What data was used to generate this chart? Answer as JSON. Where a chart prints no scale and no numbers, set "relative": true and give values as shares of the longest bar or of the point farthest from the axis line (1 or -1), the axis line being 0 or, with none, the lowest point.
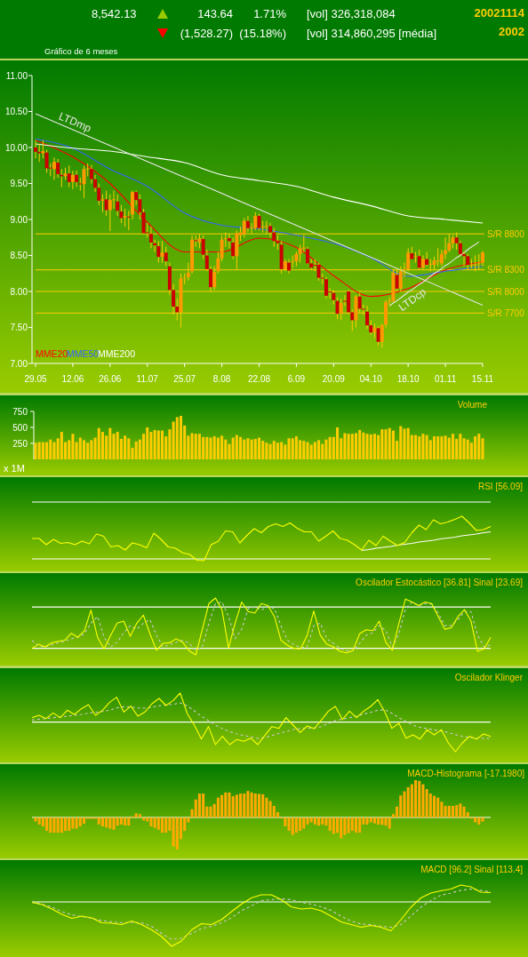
{
  "chart_data": [
    {
      "type": "other",
      "annotations": [
        "8,542.13",
        "143.64",
        "1.71%",
        "[vol] 326,318,084",
        "(1,528.27)",
        "(15.18%)",
        "[vol] 314,860,295 [média]",
        "20021114",
        "2002",
        "Gráfico de 6 meses"
      ]
    },
    {
      "type": "candlestick",
      "categories": [
        "29.05",
        null,
        null,
        null,
        null,
        null,
        null,
        null,
        null,
        null,
        "12.06",
        null,
        null,
        null,
        null,
        null,
        null,
        null,
        null,
        null,
        "26.06",
        null,
        null,
        null,
        null,
        null,
        null,
        null,
        null,
        null,
        "11.07",
        null,
        null,
        null,
        null,
        null,
        null,
        null,
        null,
        null,
        "25.07",
        null,
        null,
        null,
        null,
        null,
        null,
        null,
        null,
        null,
        "8.08",
        null,
        null,
        null,
        null,
        null,
        null,
        null,
        null,
        null,
        "22.08",
        null,
        null,
        null,
        null,
        null,
        null,
        null,
        null,
        null,
        "6.09",
        null,
        null,
        null,
        null,
        null,
        null,
        null,
        null,
        null,
        "20.09",
        null,
        null,
        null,
        null,
        null,
        null,
        null,
        null,
        null,
        "04.10",
        null,
        null,
        null,
        null,
        null,
        null,
        null,
        null,
        null,
        "18.10",
        null,
        null,
        null,
        null,
        null,
        null,
        null,
        null,
        null,
        "01.11",
        null,
        null,
        null,
        null,
        null,
        null,
        null,
        null,
        null,
        "15.11"
      ],
      "ohlc": [
        [
          10.0,
          10.1,
          9.85,
          9.94
        ],
        [
          9.94,
          10.05,
          9.8,
          9.92
        ],
        [
          9.92,
          10.1,
          9.85,
          9.95
        ],
        [
          9.93,
          9.97,
          9.65,
          9.71
        ],
        [
          9.72,
          9.78,
          9.6,
          9.71
        ],
        [
          9.7,
          9.86,
          9.55,
          9.8
        ],
        [
          9.79,
          9.84,
          9.58,
          9.63
        ],
        [
          9.62,
          9.7,
          9.45,
          9.6
        ],
        [
          9.6,
          9.72,
          9.55,
          9.64
        ],
        [
          9.64,
          9.75,
          9.45,
          9.52
        ],
        [
          9.52,
          9.68,
          9.42,
          9.62
        ],
        [
          9.62,
          9.68,
          9.45,
          9.52
        ],
        [
          9.5,
          9.58,
          9.4,
          9.49
        ],
        [
          9.49,
          9.75,
          9.3,
          9.7
        ],
        [
          9.7,
          9.78,
          9.6,
          9.71
        ],
        [
          9.7,
          9.76,
          9.5,
          9.56
        ],
        [
          9.56,
          9.62,
          9.38,
          9.44
        ],
        [
          9.44,
          9.5,
          9.2,
          9.26
        ],
        [
          9.26,
          9.35,
          9.1,
          9.28
        ],
        [
          9.28,
          9.4,
          9.05,
          9.13
        ],
        [
          9.13,
          9.35,
          8.84,
          9.27
        ],
        [
          9.27,
          9.4,
          9.15,
          9.28
        ],
        [
          9.25,
          9.35,
          9.05,
          9.12
        ],
        [
          9.11,
          9.2,
          8.95,
          9.02
        ],
        [
          9.03,
          9.15,
          8.9,
          9.05
        ],
        [
          9.04,
          9.12,
          8.85,
          9.03
        ],
        [
          9.07,
          9.4,
          9.0,
          9.38
        ],
        [
          9.38,
          9.4,
          9.2,
          9.27
        ],
        [
          9.28,
          9.35,
          9.0,
          9.1
        ],
        [
          9.1,
          9.15,
          8.8,
          8.81
        ],
        [
          8.82,
          8.95,
          8.75,
          8.81
        ],
        [
          8.8,
          8.9,
          8.6,
          8.68
        ],
        [
          8.67,
          8.72,
          8.55,
          8.64
        ],
        [
          8.63,
          8.7,
          8.4,
          8.48
        ],
        [
          8.48,
          8.7,
          8.4,
          8.54
        ],
        [
          8.54,
          8.62,
          8.35,
          8.42
        ],
        [
          8.35,
          8.4,
          7.95,
          8.02
        ],
        [
          8.02,
          8.1,
          7.68,
          7.79
        ],
        [
          7.79,
          7.9,
          7.6,
          7.71
        ],
        [
          7.71,
          8.25,
          7.5,
          8.18
        ],
        [
          8.18,
          8.25,
          8.1,
          8.19
        ],
        [
          8.2,
          8.4,
          8.15,
          8.26
        ],
        [
          8.28,
          8.78,
          8.25,
          8.72
        ],
        [
          8.71,
          8.78,
          8.62,
          8.7
        ],
        [
          8.68,
          8.8,
          8.6,
          8.74
        ],
        [
          8.73,
          8.78,
          8.45,
          8.51
        ],
        [
          8.5,
          8.58,
          8.28,
          8.31
        ],
        [
          8.31,
          8.35,
          8.0,
          8.06
        ],
        [
          8.06,
          8.35,
          8.02,
          8.27
        ],
        [
          8.28,
          8.55,
          8.25,
          8.46
        ],
        [
          8.46,
          8.78,
          8.42,
          8.72
        ],
        [
          8.73,
          8.82,
          8.62,
          8.74
        ],
        [
          8.74,
          8.8,
          8.6,
          8.7
        ],
        [
          8.68,
          8.75,
          8.45,
          8.49
        ],
        [
          8.49,
          8.85,
          8.3,
          8.81
        ],
        [
          8.78,
          8.9,
          8.7,
          8.82
        ],
        [
          8.8,
          9.02,
          8.75,
          8.98
        ],
        [
          8.98,
          9.05,
          8.82,
          8.88
        ],
        [
          8.88,
          8.95,
          8.8,
          8.89
        ],
        [
          8.88,
          9.1,
          8.85,
          9.05
        ],
        [
          9.05,
          9.08,
          8.85,
          8.88
        ],
        [
          8.89,
          8.98,
          8.82,
          8.9
        ],
        [
          8.91,
          8.98,
          8.8,
          8.91
        ],
        [
          8.91,
          8.95,
          8.75,
          8.82
        ],
        [
          8.82,
          8.88,
          8.62,
          8.7
        ],
        [
          8.7,
          8.78,
          8.58,
          8.67
        ],
        [
          8.65,
          8.7,
          8.25,
          8.31
        ],
        [
          8.31,
          8.45,
          8.28,
          8.42
        ],
        [
          8.4,
          8.45,
          8.25,
          8.29
        ],
        [
          8.42,
          8.5,
          8.33,
          8.42
        ],
        [
          8.42,
          8.55,
          8.35,
          8.52
        ],
        [
          8.52,
          8.65,
          8.4,
          8.6
        ],
        [
          8.6,
          8.78,
          8.55,
          8.61
        ],
        [
          8.59,
          8.62,
          8.38,
          8.39
        ],
        [
          8.39,
          8.45,
          8.3,
          8.33
        ],
        [
          8.37,
          8.45,
          8.28,
          8.36
        ],
        [
          8.37,
          8.4,
          8.15,
          8.19
        ],
        [
          8.19,
          8.25,
          8.1,
          8.18
        ],
        [
          8.17,
          8.2,
          7.9,
          7.94
        ],
        [
          8.0,
          8.05,
          7.9,
          7.99
        ],
        [
          7.98,
          8.02,
          7.82,
          7.88
        ],
        [
          7.87,
          7.92,
          7.62,
          7.69
        ],
        [
          7.69,
          7.9,
          7.6,
          7.84
        ],
        [
          7.87,
          7.95,
          7.8,
          7.86
        ],
        [
          8.0,
          8.02,
          7.68,
          7.71
        ],
        [
          7.71,
          7.75,
          7.45,
          7.6
        ],
        [
          7.6,
          7.95,
          7.5,
          7.93
        ],
        [
          7.93,
          7.98,
          7.7,
          7.76
        ],
        [
          7.76,
          7.82,
          7.68,
          7.75
        ],
        [
          7.72,
          7.8,
          7.48,
          7.53
        ],
        [
          7.53,
          7.6,
          7.4,
          7.43
        ],
        [
          7.43,
          7.55,
          7.35,
          7.5
        ],
        [
          7.49,
          7.52,
          7.25,
          7.3
        ],
        [
          7.3,
          7.55,
          7.22,
          7.53
        ],
        [
          7.54,
          7.88,
          7.5,
          7.85
        ],
        [
          7.85,
          7.92,
          7.8,
          7.87
        ],
        [
          7.87,
          8.3,
          7.85,
          8.26
        ],
        [
          8.23,
          8.3,
          8.0,
          8.04
        ],
        [
          8.04,
          8.35,
          8.0,
          8.28
        ],
        [
          8.3,
          8.4,
          8.2,
          8.31
        ],
        [
          8.31,
          8.6,
          8.28,
          8.54
        ],
        [
          8.53,
          8.62,
          8.45,
          8.45
        ],
        [
          8.49,
          8.55,
          8.4,
          8.49
        ],
        [
          8.49,
          8.58,
          8.3,
          8.33
        ],
        [
          8.33,
          8.5,
          8.3,
          8.45
        ],
        [
          8.45,
          8.55,
          8.35,
          8.37
        ],
        [
          8.37,
          8.45,
          8.28,
          8.38
        ],
        [
          8.37,
          8.48,
          8.3,
          8.43
        ],
        [
          8.43,
          8.6,
          8.35,
          8.43
        ],
        [
          8.39,
          8.58,
          8.35,
          8.52
        ],
        [
          8.52,
          8.75,
          8.45,
          8.57
        ],
        [
          8.57,
          8.8,
          8.55,
          8.67
        ],
        [
          8.67,
          8.78,
          8.6,
          8.75
        ],
        [
          8.75,
          8.82,
          8.58,
          8.67
        ],
        [
          8.67,
          8.7,
          8.5,
          8.52
        ],
        [
          8.52,
          8.55,
          8.35,
          8.49
        ],
        [
          8.49,
          8.52,
          8.3,
          8.37
        ],
        [
          8.37,
          8.45,
          8.32,
          8.37
        ],
        [
          8.37,
          8.5,
          8.28,
          8.38
        ],
        [
          8.4,
          8.52,
          8.3,
          8.4
        ],
        [
          8.4,
          8.56,
          8.35,
          8.54
        ]
      ],
      "ylim": [
        7,
        11
      ],
      "yticks": [
        {
          "value": 7,
          "label": "7.00"
        },
        {
          "value": 7.5,
          "label": "7.50"
        },
        {
          "value": 8,
          "label": "8.00"
        },
        {
          "value": 8.5,
          "label": "8.50"
        },
        {
          "value": 9,
          "label": "9.00"
        },
        {
          "value": 9.5,
          "label": "9.50"
        },
        {
          "value": 10,
          "label": "10.00"
        },
        {
          "value": 10.5,
          "label": "10.50"
        },
        {
          "value": 11,
          "label": "11.00"
        }
      ],
      "series": [
        {
          "type": "line",
          "name": "MME20",
          "color": "#ff0000",
          "x": [
            "29.05",
            "12.06",
            "26.06",
            "11.07",
            "25.07",
            "8.08",
            "22.08",
            "6.09",
            "20.09",
            "04.10",
            "18.10",
            "01.11",
            "15.11"
          ],
          "values": [
            10.1,
            9.87,
            9.5,
            8.96,
            8.55,
            8.55,
            8.74,
            8.61,
            8.22,
            7.93,
            8.04,
            8.3,
            8.41
          ]
        },
        {
          "type": "line",
          "name": "MME50",
          "color": "#3366ff",
          "x": [
            "29.05",
            "12.06",
            "26.06",
            "11.07",
            "25.07",
            "8.08",
            "22.08",
            "6.09",
            "20.09",
            "04.10",
            "18.10",
            "01.11",
            "15.11"
          ],
          "values": [
            10.12,
            9.99,
            9.7,
            9.46,
            9.09,
            8.92,
            8.87,
            8.78,
            8.67,
            8.47,
            8.21,
            8.28,
            8.35
          ]
        },
        {
          "type": "line",
          "name": "MME200",
          "color": "#ffffff",
          "x": [
            "29.05",
            "12.06",
            "26.06",
            "11.07",
            "25.07",
            "8.08",
            "22.08",
            "6.09",
            "20.09",
            "04.10",
            "18.10",
            "01.11",
            "15.11"
          ],
          "values": [
            10.05,
            9.99,
            9.95,
            9.87,
            9.79,
            9.62,
            9.54,
            9.46,
            9.31,
            9.19,
            9.05,
            9.0,
            8.95
          ]
        },
        {
          "type": "line",
          "name": "LTDmp",
          "color": "#e6e6e6",
          "x": [
            "29.05",
            "15.11"
          ],
          "values": [
            10.47,
            7.81
          ]
        },
        {
          "type": "line",
          "name": "LTDcp",
          "color": "#e6e6e6",
          "values": [
            null,
            null,
            null,
            null,
            null,
            null,
            null,
            null,
            null,
            null,
            null,
            null,
            null,
            null,
            null,
            null,
            null,
            null,
            null,
            null,
            null,
            null,
            null,
            null,
            null,
            null,
            null,
            null,
            null,
            null,
            null,
            null,
            null,
            null,
            null,
            null,
            null,
            null,
            null,
            null,
            null,
            null,
            null,
            null,
            null,
            null,
            null,
            null,
            null,
            null,
            null,
            null,
            null,
            null,
            null,
            null,
            null,
            null,
            null,
            null,
            null,
            null,
            null,
            null,
            null,
            null,
            null,
            null,
            null,
            null,
            null,
            null,
            null,
            null,
            null,
            null,
            null,
            null,
            null,
            null,
            null,
            null,
            null,
            null,
            null,
            null,
            null,
            null,
            null,
            null,
            null,
            null,
            null,
            null,
            null,
            7.8,
            7.84,
            7.87,
            7.91,
            7.95,
            7.99,
            8.02,
            8.06,
            8.1,
            8.13,
            8.17,
            8.21,
            8.25,
            8.28,
            8.32,
            8.36,
            8.39,
            8.43,
            8.47,
            8.5,
            8.54,
            8.58,
            8.62,
            8.65,
            8.69,
            null
          ]
        }
      ],
      "ref_lines": [
        {
          "axis": "y",
          "value": 8.8,
          "label": "S/R 8800",
          "color": "#ffcc00"
        },
        {
          "axis": "y",
          "value": 8.3,
          "label": "S/R 8300",
          "color": "#ffcc00"
        },
        {
          "axis": "y",
          "value": 8.0,
          "label": "S/R 8000",
          "color": "#ffcc00"
        },
        {
          "axis": "y",
          "value": 7.7,
          "label": "S/R 7700",
          "color": "#ffcc00"
        }
      ],
      "legend": "bottom left"
    },
    {
      "type": "bar",
      "title": "Volume",
      "categories": [
        null,
        null,
        null,
        null,
        null,
        null,
        null,
        null,
        null,
        null,
        null,
        null,
        null,
        null,
        null,
        null,
        null,
        null,
        null,
        null,
        null,
        null,
        null,
        null,
        null,
        null,
        null,
        null,
        null,
        null,
        null,
        null,
        null,
        null,
        null,
        null,
        null,
        null,
        null,
        null,
        null,
        null,
        null,
        null,
        null,
        null,
        null,
        null,
        null,
        null,
        null,
        null,
        null,
        null,
        null,
        null,
        null,
        null,
        null,
        null,
        null,
        null,
        null,
        null,
        null,
        null,
        null,
        null,
        null,
        null,
        null,
        null,
        null,
        null,
        null,
        null,
        null,
        null,
        null,
        null,
        null,
        null,
        null,
        null,
        null,
        null,
        null,
        null,
        null,
        null,
        null,
        null,
        null,
        null,
        null,
        null,
        null,
        null,
        null,
        null,
        null,
        null,
        null,
        null,
        null,
        null,
        null,
        null,
        null,
        null,
        null,
        null,
        null,
        null,
        null,
        null,
        null,
        null,
        null,
        null,
        null
      ],
      "values": [
        260,
        270,
        270,
        270,
        310,
        270,
        330,
        430,
        270,
        300,
        400,
        270,
        340,
        300,
        260,
        300,
        340,
        490,
        430,
        370,
        490,
        400,
        430,
        320,
        370,
        330,
        180,
        280,
        310,
        400,
        500,
        430,
        460,
        450,
        450,
        360,
        470,
        590,
        660,
        680,
        530,
        370,
        410,
        400,
        400,
        350,
        350,
        340,
        360,
        340,
        370,
        310,
        240,
        340,
        380,
        350,
        310,
        330,
        310,
        320,
        340,
        290,
        260,
        240,
        290,
        260,
        270,
        230,
        330,
        330,
        360,
        300,
        290,
        270,
        230,
        270,
        300,
        240,
        310,
        350,
        350,
        500,
        330,
        410,
        400,
        400,
        410,
        460,
        420,
        400,
        390,
        400,
        380,
        470,
        470,
        490,
        450,
        290,
        520,
        480,
        490,
        380,
        380,
        360,
        400,
        380,
        300,
        360,
        360,
        360,
        370,
        340,
        400,
        320,
        400,
        330,
        310,
        260,
        360,
        400,
        330
      ],
      "color": "#ffcc00",
      "ylim": [
        0,
        750
      ],
      "yticks": [
        250,
        500,
        750
      ],
      "annotations": [
        "x 1M"
      ]
    },
    {
      "type": "line",
      "title": "RSI [56.09]",
      "relative": true,
      "categories": [
        null,
        null,
        null,
        null,
        null,
        null,
        null,
        null,
        null,
        null,
        null,
        null,
        null,
        null,
        null,
        null,
        null,
        null,
        null,
        null,
        null,
        null,
        null,
        null,
        null,
        null,
        null,
        null,
        null,
        null,
        null,
        null,
        null,
        null,
        null,
        null,
        null,
        null,
        null,
        null,
        null,
        null,
        null,
        null,
        null,
        null,
        null,
        null,
        null,
        null,
        null,
        null,
        null,
        null,
        null,
        null,
        null,
        null,
        null,
        null,
        null,
        null,
        null,
        null,
        null
      ],
      "series": [
        {
          "color": "#ffff00",
          "values": [
            0.5,
            0.5,
            0.36,
            0.48,
            0.39,
            0.41,
            0.36,
            0.44,
            0.38,
            0.6,
            0.55,
            0.31,
            0.34,
            0.24,
            0.4,
            0.36,
            0.29,
            0.62,
            0.48,
            0.31,
            0.28,
            0.18,
            0.14,
            0.01,
            0,
            0.36,
            0.44,
            0.67,
            0.65,
            0.4,
            0.57,
            0.72,
            0.63,
            0.77,
            0.83,
            0.77,
            0.85,
            0.73,
            0.65,
            0.65,
            0.44,
            0.55,
            0.67,
            0.5,
            0.46,
            0.36,
            0.24,
            0.46,
            0.34,
            0.55,
            0.44,
            0.34,
            0.41,
            0.63,
            0.8,
            0.7,
            0.92,
            0.83,
            0.87,
            0.93,
            1,
            0.85,
            0.68,
            0.7,
            0.77
          ]
        },
        {
          "color": "#ffffff",
          "values": [
            null,
            null,
            null,
            null,
            null,
            null,
            null,
            null,
            null,
            null,
            null,
            null,
            null,
            null,
            null,
            null,
            null,
            null,
            null,
            null,
            null,
            null,
            null,
            null,
            null,
            null,
            null,
            null,
            null,
            null,
            null,
            null,
            null,
            null,
            null,
            null,
            null,
            null,
            null,
            null,
            null,
            null,
            null,
            null,
            null,
            null,
            0.23,
            0.25,
            0.28,
            0.3,
            0.32,
            0.35,
            0.37,
            0.39,
            0.42,
            0.44,
            0.46,
            0.49,
            0.51,
            0.53,
            0.56,
            0.58,
            0.6,
            0.63,
            0.65
          ]
        }
      ],
      "ref_lines": [
        {
          "axis": "y",
          "value": 1.32,
          "color": "#ffffff"
        },
        {
          "axis": "y",
          "value": 0.04,
          "color": "#ffffff"
        }
      ]
    },
    {
      "type": "line",
      "title": "Oscilador Estocástico [36.81]   Sinal [23.69]",
      "relative": true,
      "categories": [
        null,
        null,
        null,
        null,
        null,
        null,
        null,
        null,
        null,
        null,
        null,
        null,
        null,
        null,
        null,
        null,
        null,
        null,
        null,
        null,
        null,
        null,
        null,
        null,
        null,
        null,
        null,
        null,
        null,
        null,
        null,
        null,
        null,
        null,
        null,
        null,
        null,
        null,
        null,
        null,
        null,
        null,
        null,
        null,
        null,
        null,
        null,
        null,
        null,
        null,
        null,
        null,
        null,
        null,
        null,
        null,
        null,
        null,
        null,
        null,
        null,
        null,
        null,
        null,
        null,
        null,
        null,
        null,
        null,
        null,
        null
      ],
      "series": [
        {
          "color": "#ffff00",
          "values": [
            0.0,
            0.08,
            0.03,
            0.11,
            0.14,
            0.16,
            0.3,
            0.22,
            0.35,
            0.76,
            0.22,
            -0.01,
            0.26,
            0.5,
            0.54,
            0.24,
            0.5,
            0.66,
            0.29,
            -0.04,
            0.1,
            0.11,
            0.19,
            0.12,
            -0.05,
            -0.13,
            0.38,
            0.89,
            1,
            0.76,
            0.01,
            0.5,
            0.92,
            0.73,
            0.7,
            0.89,
            0.85,
            0.63,
            0.16,
            0.06,
            0.0,
            -0.01,
            0.26,
            0.74,
            0.26,
            0.08,
            0.03,
            -0.06,
            -0.09,
            -0.04,
            0.29,
            0.37,
            0.35,
            0.54,
            0.12,
            -0.04,
            0.5,
            0.98,
            0.92,
            0.85,
            0.92,
            0.89,
            0.63,
            0.38,
            0.41,
            0.63,
            0.77,
            0.54,
            -0.06,
            -0.01,
            0.22
          ]
        },
        {
          "color": "#c8c8c8",
          "line_style": "dashed",
          "values": [
            0.16,
            0.05,
            0.03,
            0.07,
            0.11,
            0.14,
            0.19,
            0.22,
            0.29,
            0.5,
            0.63,
            0.22,
            0.03,
            0.12,
            0.31,
            0.45,
            0.38,
            0.5,
            0.57,
            0.26,
            0.03,
            0.07,
            0.12,
            0.16,
            0.1,
            -0.04,
            0.03,
            0.5,
            0.89,
            0.92,
            0.63,
            0.19,
            0.38,
            0.79,
            0.82,
            0.76,
            0.83,
            0.79,
            0.45,
            0.16,
            0.07,
            0.01,
            0.03,
            0.45,
            0.5,
            0.19,
            0.1,
            0.0,
            -0.05,
            -0.05,
            0.1,
            0.26,
            0.31,
            0.45,
            0.35,
            0.03,
            0.29,
            0.79,
            0.92,
            0.85,
            0.89,
            0.88,
            0.7,
            0.45,
            0.45,
            0.57,
            0.73,
            0.73,
            0.26,
            0.03,
            0.07
          ]
        }
      ],
      "ref_lines": [
        {
          "axis": "y",
          "value": 0.82,
          "color": "#ffffff"
        }
      ]
    },
    {
      "type": "line",
      "title": "Oscilador Klinger",
      "relative": true,
      "categories": [
        null,
        null,
        null,
        null,
        null,
        null,
        null,
        null,
        null,
        null,
        null,
        null,
        null,
        null,
        null,
        null,
        null,
        null,
        null,
        null,
        null,
        null,
        null,
        null,
        null,
        null,
        null,
        null,
        null,
        null,
        null,
        null,
        null,
        null,
        null,
        null,
        null,
        null,
        null,
        null,
        null,
        null,
        null,
        null,
        null,
        null,
        null,
        null,
        null,
        null,
        null,
        null,
        null,
        null,
        null,
        null,
        null,
        null,
        null,
        null,
        null,
        null,
        null,
        null,
        null,
        null
      ],
      "series": [
        {
          "color": "#ffff00",
          "values": [
            0.15,
            0.23,
            0.12,
            0.31,
            0.15,
            0.4,
            0.26,
            0.45,
            0.59,
            0.23,
            0.4,
            0.67,
            0.84,
            0.34,
            0.54,
            0.2,
            0.34,
            0.62,
            0.8,
            0.56,
            0.73,
            0.98,
            0.29,
            -0.1,
            -0.57,
            -0.15,
            -0.76,
            -0.48,
            -0.76,
            -0.59,
            -0.65,
            -0.54,
            -0.76,
            -0.45,
            -0.15,
            -0.21,
            0.15,
            -0.1,
            -0.35,
            -0.13,
            -0.22,
            0.07,
            0.37,
            0.53,
            0.09,
            0.37,
            0.15,
            0.37,
            0.53,
            0.76,
            0.34,
            -0.21,
            -0.04,
            -0.54,
            -0.43,
            -0.57,
            -0.26,
            -0.43,
            -0.26,
            -0.7,
            -1,
            -0.7,
            -0.48,
            -0.57,
            -0.4,
            -0.48
          ]
        },
        {
          "color": "#c8c8c8",
          "line_style": "dashed",
          "values": [
            0.07,
            0.1,
            0.12,
            0.15,
            0.17,
            0.2,
            0.23,
            0.26,
            0.3,
            0.33,
            0.36,
            0.4,
            0.48,
            0.52,
            0.51,
            0.48,
            0.47,
            0.5,
            0.55,
            0.58,
            0.6,
            0.65,
            0.55,
            0.38,
            0.2,
            0.05,
            -0.1,
            -0.22,
            -0.32,
            -0.4,
            -0.45,
            -0.5,
            -0.55,
            -0.52,
            -0.45,
            -0.38,
            -0.32,
            -0.25,
            -0.22,
            -0.2,
            -0.2,
            -0.15,
            -0.05,
            0.05,
            0.1,
            0.15,
            0.2,
            0.27,
            0.33,
            0.4,
            0.42,
            0.3,
            0.15,
            0.02,
            -0.1,
            -0.18,
            -0.22,
            -0.26,
            -0.3,
            -0.35,
            -0.42,
            -0.48,
            -0.52,
            -0.55,
            -0.55,
            -0.54
          ]
        }
      ]
    },
    {
      "type": "bar",
      "title": "MACD-Histograma [-17.1980]",
      "relative": true,
      "color": "#ffaa00",
      "categories": [
        null,
        null,
        null,
        null,
        null,
        null,
        null,
        null,
        null,
        null,
        null,
        null,
        null,
        null,
        null,
        null,
        null,
        null,
        null,
        null,
        null,
        null,
        null,
        null,
        null,
        null,
        null,
        null,
        null,
        null,
        null,
        null,
        null,
        null,
        null,
        null,
        null,
        null,
        null,
        null,
        null,
        null,
        null,
        null,
        null,
        null,
        null,
        null,
        null,
        null,
        null,
        null,
        null,
        null,
        null,
        null,
        null,
        null,
        null,
        null,
        null,
        null,
        null,
        null,
        null,
        null,
        null,
        null,
        null,
        null,
        null,
        null,
        null,
        null,
        null,
        null,
        null,
        null,
        null,
        null,
        null,
        null,
        null,
        null,
        null,
        null,
        null,
        null,
        null,
        null,
        null,
        null,
        null,
        null,
        null,
        null,
        null,
        null,
        null,
        null,
        null,
        null,
        null,
        null,
        null,
        null,
        null,
        null,
        null,
        null,
        null,
        null,
        null,
        null,
        null,
        null,
        null,
        null,
        null,
        null,
        null
      ],
      "values": [
        -0.11,
        -0.19,
        -0.24,
        -0.36,
        -0.41,
        -0.41,
        -0.41,
        -0.41,
        -0.36,
        -0.36,
        -0.3,
        -0.3,
        -0.24,
        -0.17,
        -0.04,
        -0.04,
        -0.04,
        -0.19,
        -0.24,
        -0.27,
        -0.3,
        -0.33,
        -0.22,
        -0.19,
        -0.22,
        -0.22,
        0.03,
        0.11,
        0.09,
        -0.08,
        -0.11,
        -0.24,
        -0.28,
        -0.33,
        -0.41,
        -0.41,
        -0.36,
        -0.78,
        -0.86,
        -0.58,
        -0.36,
        -0.13,
        0.22,
        0.48,
        0.64,
        0.64,
        0.29,
        0.29,
        0.36,
        0.53,
        0.6,
        0.67,
        0.67,
        0.57,
        0.61,
        0.64,
        0.64,
        0.71,
        0.67,
        0.64,
        0.63,
        0.62,
        0.53,
        0.44,
        0.31,
        0.14,
        -0.03,
        -0.24,
        -0.36,
        -0.47,
        -0.41,
        -0.36,
        -0.3,
        -0.19,
        -0.13,
        -0.19,
        -0.22,
        -0.19,
        -0.22,
        -0.36,
        -0.44,
        -0.41,
        -0.56,
        -0.47,
        -0.42,
        -0.36,
        -0.41,
        -0.41,
        -0.19,
        -0.19,
        -0.13,
        -0.16,
        -0.19,
        -0.2,
        -0.22,
        -0.3,
        0.09,
        0.29,
        0.59,
        0.7,
        0.81,
        0.89,
        1,
        0.98,
        0.89,
        0.76,
        0.64,
        0.58,
        0.53,
        0.42,
        0.31,
        0.31,
        0.31,
        0.33,
        0.37,
        0.29,
        0.14,
        -0.03,
        -0.13,
        -0.19,
        -0.11
      ]
    },
    {
      "type": "line",
      "title": "MACD [96.2]   Sinal [113.4]",
      "relative": true,
      "categories": [
        null,
        null,
        null,
        null,
        null,
        null,
        null,
        null,
        null,
        null,
        null,
        null,
        null,
        null,
        null,
        null,
        null,
        null,
        null,
        null,
        null,
        null,
        null,
        null,
        null,
        null,
        null,
        null,
        null,
        null,
        null,
        null,
        null,
        null,
        null,
        null,
        null,
        null,
        null,
        null,
        null,
        null,
        null,
        null,
        null,
        null,
        null
      ],
      "series": [
        {
          "color": "#ffff00",
          "values": [
            -0.01,
            -0.06,
            -0.16,
            -0.28,
            -0.37,
            -0.32,
            -0.36,
            -0.47,
            -0.48,
            -0.51,
            -0.43,
            -0.51,
            -0.63,
            -0.78,
            -1,
            -0.88,
            -0.63,
            -0.49,
            -0.51,
            -0.4,
            -0.22,
            -0.05,
            0.09,
            0.16,
            0.16,
            0.05,
            -0.11,
            -0.16,
            -0.14,
            -0.2,
            -0.32,
            -0.45,
            -0.51,
            -0.57,
            -0.53,
            -0.57,
            -0.65,
            -0.4,
            -0.12,
            0.09,
            0.2,
            0.25,
            0.29,
            0.38,
            0.34,
            0.22,
            0.21
          ]
        },
        {
          "color": "#c8c8c8",
          "line_style": "dashed",
          "values": [
            -0.01,
            -0.05,
            -0.12,
            -0.22,
            -0.29,
            -0.33,
            -0.37,
            -0.42,
            -0.45,
            -0.47,
            -0.46,
            -0.47,
            -0.55,
            -0.71,
            -0.84,
            -0.82,
            -0.71,
            -0.6,
            -0.55,
            -0.47,
            -0.36,
            -0.2,
            -0.09,
            0.03,
            0.05,
            0.07,
            0.05,
            -0.01,
            -0.05,
            -0.11,
            -0.19,
            -0.32,
            -0.43,
            -0.5,
            -0.51,
            -0.55,
            -0.57,
            -0.51,
            -0.32,
            -0.12,
            0.03,
            0.15,
            0.2,
            0.26,
            0.29,
            0.26,
            0.22
          ]
        }
      ]
    }
  ]
}
